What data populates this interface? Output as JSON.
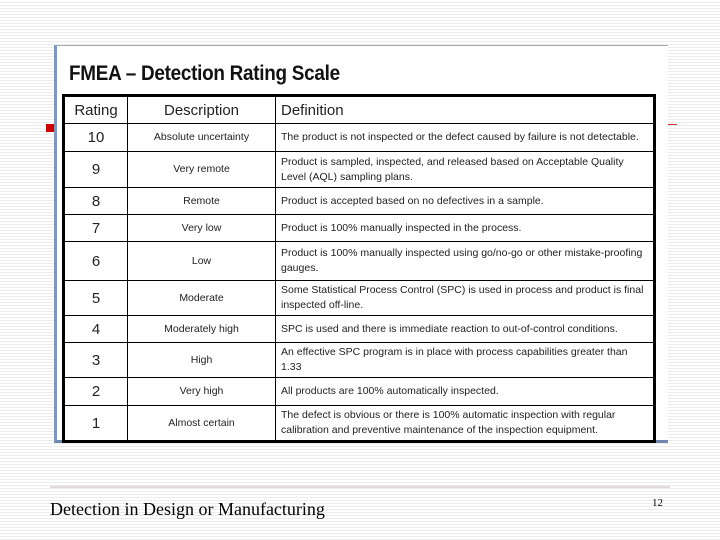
{
  "slide": {
    "title": "FMEA – Detection Rating Scale",
    "footer": "Detection in Design or Manufacturing",
    "page_number": "12"
  },
  "table": {
    "headers": [
      "Rating",
      "Description",
      "Definition"
    ],
    "rows": [
      {
        "rating": "10",
        "description": "Absolute uncertainty",
        "definition": "The product is not inspected or the defect caused by failure is not detectable."
      },
      {
        "rating": "9",
        "description": "Very remote",
        "definition": "Product is sampled, inspected, and released based on Acceptable Quality Level (AQL) sampling plans."
      },
      {
        "rating": "8",
        "description": "Remote",
        "definition": "Product is accepted based on no defectives in a sample."
      },
      {
        "rating": "7",
        "description": "Very low",
        "definition": "Product is 100% manually inspected in the process."
      },
      {
        "rating": "6",
        "description": "Low",
        "definition": "Product is 100% manually inspected using go/no-go or other mistake-proofing gauges."
      },
      {
        "rating": "5",
        "description": "Moderate",
        "definition": "Some Statistical Process Control (SPC) is used in process and product is final inspected off-line."
      },
      {
        "rating": "4",
        "description": "Moderately high",
        "definition": "SPC is used and there is immediate reaction to out-of-control conditions."
      },
      {
        "rating": "3",
        "description": "High",
        "definition": "An effective SPC program is in place with process capabilities greater than 1.33"
      },
      {
        "rating": "2",
        "description": "Very high",
        "definition": "All products are 100% automatically inspected."
      },
      {
        "rating": "1",
        "description": "Almost certain",
        "definition": "The defect is obvious or there is 100% automatic inspection with regular calibration and preventive maintenance of the inspection equipment."
      }
    ]
  }
}
